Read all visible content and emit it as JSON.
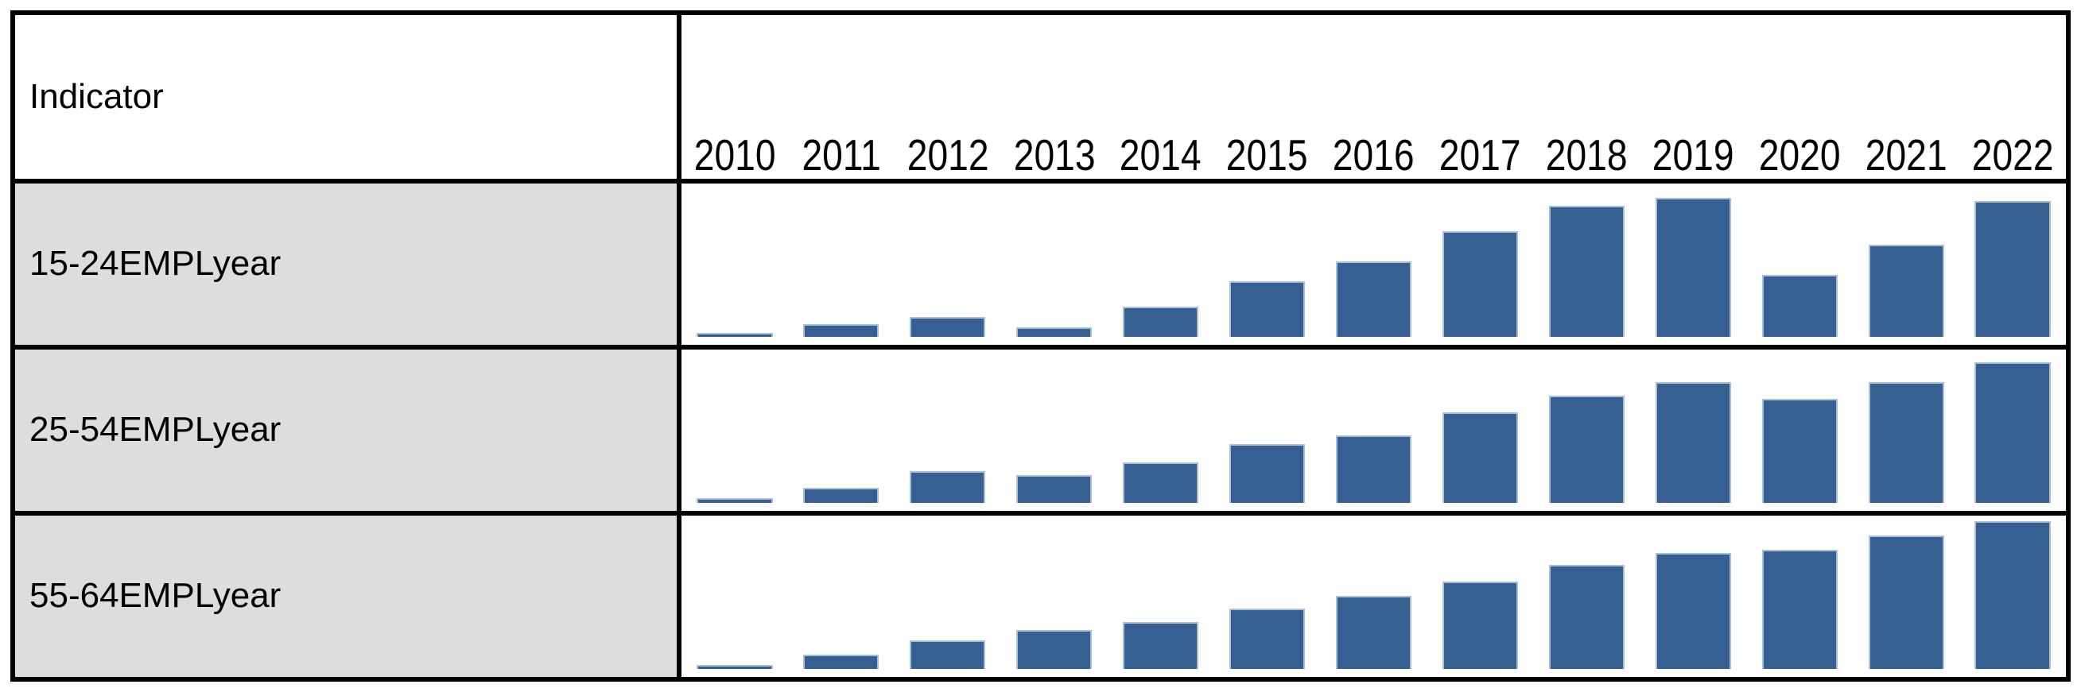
{
  "colors": {
    "bar_fill": "#366092",
    "bar_edge": "#a9bed8",
    "label_cell_bg": "#dddddd",
    "table_border": "#000000",
    "background": "#ffffff"
  },
  "table": {
    "header": {
      "indicator_label": "Indicator",
      "years": [
        "2010",
        "2011",
        "2012",
        "2013",
        "2014",
        "2015",
        "2016",
        "2017",
        "2018",
        "2019",
        "2020",
        "2021",
        "2022"
      ]
    },
    "rows": [
      {
        "label": "15-24EMPLyear"
      },
      {
        "label": "25-54EMPLyear"
      },
      {
        "label": "55-64EMPLyear"
      }
    ]
  },
  "chart_data": [
    {
      "type": "bar",
      "title": "15-24EMPLyear",
      "categories": [
        "2010",
        "2011",
        "2012",
        "2013",
        "2014",
        "2015",
        "2016",
        "2017",
        "2018",
        "2019",
        "2020",
        "2021",
        "2022"
      ],
      "values": [
        2.5,
        8.5,
        13,
        6.5,
        20,
        37,
        50,
        70,
        87,
        92,
        41,
        61,
        90
      ],
      "units": "relative bar height, % of plot area (no numeric axis shown)",
      "xlabel": "",
      "ylabel": "",
      "ylim": [
        0,
        100
      ],
      "grid": false,
      "legend": false,
      "bar_color": "#366092"
    },
    {
      "type": "bar",
      "title": "25-54EMPLyear",
      "categories": [
        "2010",
        "2011",
        "2012",
        "2013",
        "2014",
        "2015",
        "2016",
        "2017",
        "2018",
        "2019",
        "2020",
        "2021",
        "2022"
      ],
      "values": [
        3,
        10,
        21,
        18.5,
        27,
        39,
        45,
        60,
        71,
        80,
        69,
        80,
        93
      ],
      "units": "relative bar height, % of plot area (no numeric axis shown)",
      "xlabel": "",
      "ylabel": "",
      "ylim": [
        0,
        100
      ],
      "grid": false,
      "legend": false,
      "bar_color": "#366092"
    },
    {
      "type": "bar",
      "title": "55-64EMPLyear",
      "categories": [
        "2010",
        "2011",
        "2012",
        "2013",
        "2014",
        "2015",
        "2016",
        "2017",
        "2018",
        "2019",
        "2020",
        "2021",
        "2022"
      ],
      "values": [
        2.5,
        9.5,
        19,
        26,
        31,
        40,
        48.5,
        58,
        69,
        77,
        79,
        88.5,
        98
      ],
      "units": "relative bar height, % of plot area (no numeric axis shown)",
      "xlabel": "",
      "ylabel": "",
      "ylim": [
        0,
        100
      ],
      "grid": false,
      "legend": false,
      "bar_color": "#366092"
    }
  ]
}
